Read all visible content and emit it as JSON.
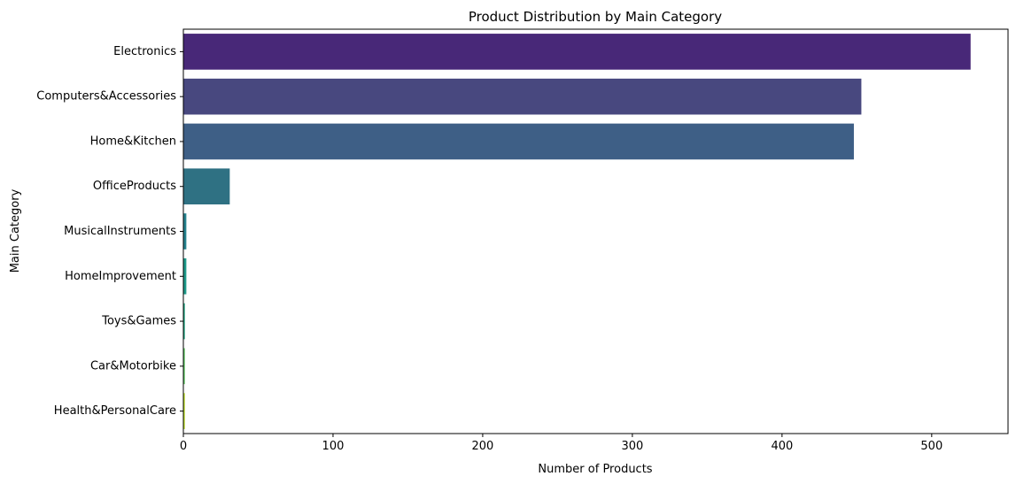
{
  "chart_data": {
    "type": "bar",
    "orientation": "horizontal",
    "title": "Product Distribution by Main Category",
    "xlabel": "Number of Products",
    "ylabel": "Main Category",
    "categories": [
      "Electronics",
      "Computers&Accessories",
      "Home&Kitchen",
      "OfficeProducts",
      "MusicalInstruments",
      "HomeImprovement",
      "Toys&Games",
      "Car&Motorbike",
      "Health&PersonalCare"
    ],
    "values": [
      526,
      453,
      448,
      31,
      2,
      2,
      1,
      1,
      1
    ],
    "colors": [
      "#482878",
      "#48487f",
      "#3e5f86",
      "#2f7183",
      "#26828e",
      "#1f9a8a",
      "#22a884",
      "#5ec962",
      "#bddf26"
    ],
    "xlim": [
      0,
      551
    ],
    "xticks": [
      0,
      100,
      200,
      300,
      400,
      500
    ],
    "grid": false
  }
}
